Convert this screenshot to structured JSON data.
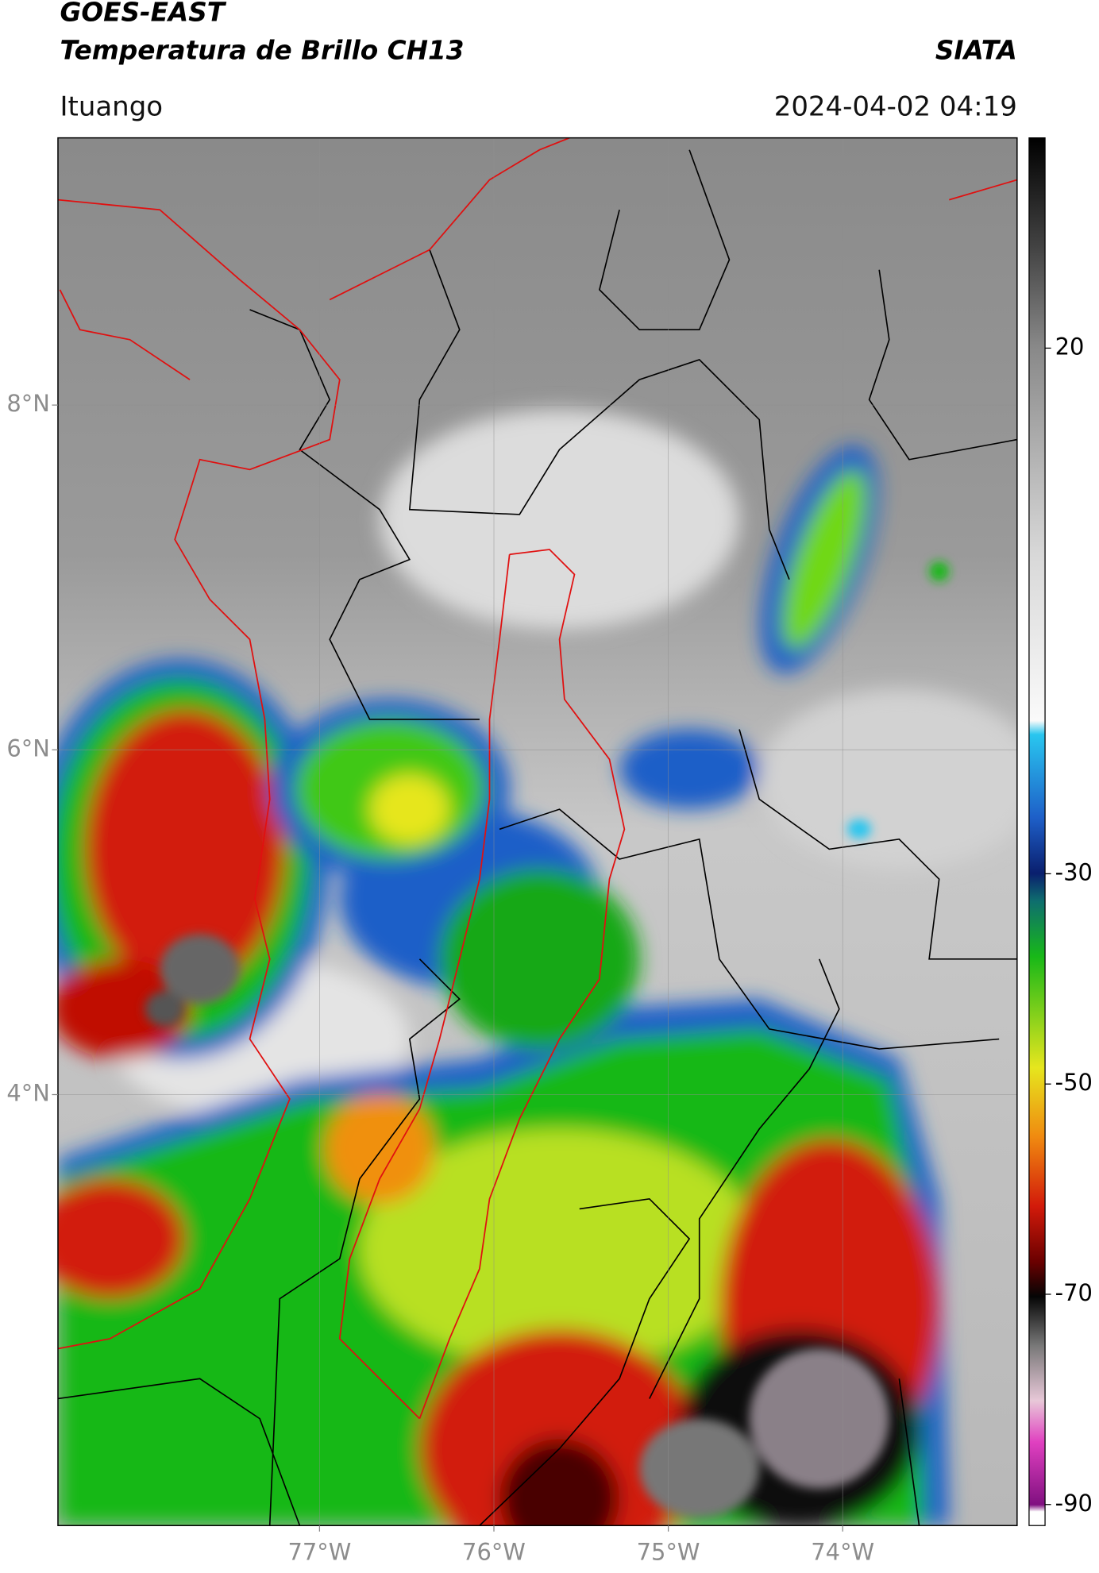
{
  "header": {
    "title_line1": "GOES-EAST",
    "title_line2": "Temperatura de Brillo CH13",
    "brand": "SIATA",
    "location": "Ituango",
    "datetime": "2024-04-02 04:19"
  },
  "map": {
    "lonlim": [
      -78.5,
      -73.0
    ],
    "latlim": [
      1.5,
      9.55
    ],
    "lonticks": [
      {
        "value": -77,
        "label": "77°W"
      },
      {
        "value": -76,
        "label": "76°W"
      },
      {
        "value": -75,
        "label": "75°W"
      },
      {
        "value": -74,
        "label": "74°W"
      }
    ],
    "latticks": [
      {
        "value": 8,
        "label": "8°N"
      },
      {
        "value": 6,
        "label": "6°N"
      },
      {
        "value": 4,
        "label": "4°N"
      }
    ],
    "grid": true
  },
  "colorbar": {
    "clim": [
      -92,
      40
    ],
    "ticks": [
      20,
      -30,
      -50,
      -70,
      -90
    ]
  }
}
